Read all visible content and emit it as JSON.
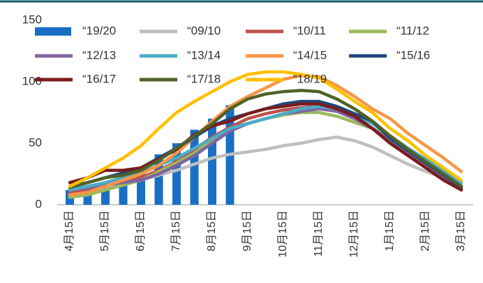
{
  "chart_data": {
    "type": "line",
    "categories": [
      "4月15日",
      null,
      "5月15日",
      null,
      "6月15日",
      null,
      "7月15日",
      null,
      "8月15日",
      null,
      "9月15日",
      null,
      "10月15日",
      null,
      "11月15日",
      null,
      "12月15日",
      null,
      "1月15日",
      null,
      "2月15日",
      null,
      "3月15日"
    ],
    "series": [
      {
        "name": "“19/20",
        "color": "#1a6fc4",
        "kind": "bar",
        "values": [
          12,
          14,
          18,
          22,
          30,
          41,
          50,
          61,
          70,
          81,
          null,
          null,
          null,
          null,
          null,
          null,
          null,
          null,
          null,
          null,
          null,
          null,
          null
        ]
      },
      {
        "name": "“09/10",
        "color": "#bfbfbf",
        "values": [
          8,
          10,
          13,
          17,
          20,
          24,
          28,
          33,
          38,
          41,
          43,
          45,
          48,
          50,
          53,
          55,
          52,
          47,
          40,
          33,
          27,
          22,
          16
        ]
      },
      {
        "name": "“10/11",
        "color": "#c0504d",
        "values": [
          10,
          13,
          16,
          18,
          22,
          28,
          35,
          45,
          55,
          63,
          70,
          74,
          77,
          79,
          80,
          78,
          72,
          62,
          52,
          42,
          32,
          22,
          13
        ]
      },
      {
        "name": "“11/12",
        "color": "#9bbb59",
        "values": [
          6,
          8,
          12,
          16,
          20,
          27,
          34,
          42,
          52,
          60,
          66,
          70,
          73,
          75,
          75,
          72,
          67,
          62,
          55,
          45,
          35,
          25,
          15
        ]
      },
      {
        "name": "“12/13",
        "color": "#8064a2",
        "values": [
          12,
          14,
          16,
          18,
          20,
          25,
          32,
          40,
          50,
          60,
          66,
          70,
          74,
          76,
          78,
          76,
          70,
          62,
          52,
          42,
          32,
          22,
          12
        ]
      },
      {
        "name": "“13/14",
        "color": "#4bacc6",
        "values": [
          12,
          15,
          18,
          22,
          26,
          32,
          38,
          46,
          54,
          62,
          66,
          70,
          74,
          78,
          80,
          78,
          73,
          66,
          56,
          46,
          37,
          28,
          18
        ]
      },
      {
        "name": "“14/15",
        "color": "#f79646",
        "values": [
          8,
          10,
          15,
          20,
          25,
          32,
          42,
          55,
          68,
          80,
          88,
          95,
          102,
          105,
          104,
          97,
          88,
          78,
          70,
          58,
          48,
          38,
          27
        ]
      },
      {
        "name": "“15/16",
        "color": "#1f497d",
        "values": [
          15,
          18,
          22,
          26,
          30,
          38,
          46,
          55,
          64,
          70,
          74,
          78,
          82,
          84,
          84,
          80,
          74,
          68,
          54,
          44,
          34,
          24,
          14
        ]
      },
      {
        "name": "“16/17",
        "color": "#7b1c1c",
        "values": [
          18,
          22,
          28,
          28,
          30,
          37,
          45,
          57,
          64,
          68,
          74,
          78,
          80,
          82,
          82,
          78,
          72,
          62,
          50,
          40,
          30,
          20,
          12
        ]
      },
      {
        "name": "“17/18",
        "color": "#4f6228",
        "values": [
          14,
          18,
          22,
          24,
          28,
          36,
          46,
          56,
          66,
          78,
          86,
          90,
          92,
          93,
          92,
          86,
          78,
          68,
          56,
          45,
          35,
          25,
          15
        ]
      },
      {
        "name": "“18/19",
        "color": "#ffc000",
        "values": [
          15,
          22,
          30,
          38,
          48,
          62,
          75,
          84,
          92,
          100,
          106,
          108,
          108,
          106,
          103,
          94,
          84,
          75,
          62,
          52,
          40,
          30,
          20
        ]
      }
    ],
    "ylim": [
      0,
      150
    ],
    "yticks": [
      0,
      50,
      100,
      150
    ],
    "grid": false,
    "legend": "top"
  }
}
